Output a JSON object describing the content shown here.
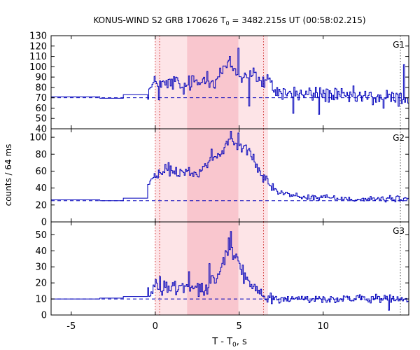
{
  "chart_data": {
    "type": "line",
    "title_prefix": "KONUS-WIND S2 GRB 170626 T",
    "title_sub": "0",
    "title_suffix": " = 3482.215s UT (00:58:02.215)",
    "xlabel_prefix": "T - T",
    "xlabel_sub": "0",
    "xlabel_suffix": ", s",
    "ylabel": "counts / 64 ms",
    "xlim": [
      -6.2,
      15.1
    ],
    "xticks": [
      -5,
      0,
      5,
      10
    ],
    "colors": {
      "data": "#0000bb",
      "baseline": "#0000bb",
      "shade_outer": "#fde4e7",
      "shade_inner": "#f9c6ce",
      "marker": "#d03030"
    },
    "shading": {
      "outer": [
        0,
        6.72
      ],
      "inner": [
        1.9,
        4.95
      ]
    },
    "markers": [
      0,
      0.26,
      6.45,
      14.6
    ],
    "panels": [
      {
        "name": "G1",
        "ylim": [
          40,
          130
        ],
        "yticks": [
          40,
          50,
          60,
          70,
          80,
          90,
          100,
          110,
          120,
          130
        ],
        "baseline": 70,
        "series": {
          "pre_steps": [
            [
              -6.2,
              71
            ],
            [
              -3.3,
              69.5
            ],
            [
              -1.9,
              73
            ]
          ],
          "points": [
            [
              -0.45,
              76
            ],
            [
              0,
              85
            ],
            [
              0.6,
              82
            ],
            [
              1.2,
              86
            ],
            [
              1.6,
              78
            ],
            [
              2.2,
              86
            ],
            [
              2.6,
              83
            ],
            [
              3.0,
              92
            ],
            [
              3.5,
              85
            ],
            [
              4.0,
              97
            ],
            [
              4.4,
              103
            ],
            [
              4.9,
              92
            ],
            [
              5.3,
              90
            ],
            [
              5.8,
              97
            ],
            [
              6.2,
              84
            ],
            [
              6.7,
              86
            ],
            [
              7.2,
              76
            ],
            [
              8.0,
              74
            ],
            [
              9.0,
              73
            ],
            [
              10.0,
              74
            ],
            [
              11.0,
              71
            ],
            [
              12.0,
              71
            ],
            [
              13.0,
              70
            ],
            [
              14.0,
              70
            ],
            [
              15.0,
              68
            ]
          ],
          "amp_pre": 0,
          "amp_burst": 9,
          "amp_post": 9,
          "spikes": [
            [
              0.2,
              68
            ],
            [
              4.95,
              118
            ],
            [
              5.55,
              62
            ],
            [
              8.2,
              55
            ],
            [
              9.7,
              54
            ],
            [
              13.55,
              60
            ],
            [
              14.8,
              102
            ]
          ]
        }
      },
      {
        "name": "G2",
        "ylim": [
          0,
          110
        ],
        "yticks": [
          0,
          20,
          40,
          60,
          80,
          100
        ],
        "baseline": 25,
        "series": {
          "pre_steps": [
            [
              -6.2,
              26
            ],
            [
              -3.3,
              25
            ],
            [
              -1.9,
              28
            ]
          ],
          "points": [
            [
              -0.45,
              45
            ],
            [
              0,
              53
            ],
            [
              0.6,
              62
            ],
            [
              1.2,
              57
            ],
            [
              1.6,
              60
            ],
            [
              2.2,
              56
            ],
            [
              2.6,
              60
            ],
            [
              3.0,
              67
            ],
            [
              3.5,
              75
            ],
            [
              4.0,
              82
            ],
            [
              4.4,
              99
            ],
            [
              4.9,
              88
            ],
            [
              5.3,
              90
            ],
            [
              5.8,
              72
            ],
            [
              6.2,
              60
            ],
            [
              6.7,
              50
            ],
            [
              7.2,
              36
            ],
            [
              8.0,
              32
            ],
            [
              9.0,
              29
            ],
            [
              10.0,
              29
            ],
            [
              11.0,
              28
            ],
            [
              12.0,
              27
            ],
            [
              13.0,
              27
            ],
            [
              14.0,
              27
            ],
            [
              15.0,
              27
            ]
          ],
          "amp_pre": 0,
          "amp_burst": 7,
          "amp_post": 4,
          "spikes": [
            [
              0.75,
              70
            ],
            [
              3.35,
              86
            ],
            [
              4.5,
              107
            ],
            [
              4.95,
              105
            ],
            [
              5.8,
              80
            ],
            [
              6.4,
              47
            ]
          ]
        }
      },
      {
        "name": "G3",
        "ylim": [
          0,
          58
        ],
        "yticks": [
          0,
          10,
          20,
          30,
          40,
          50
        ],
        "baseline": 10,
        "series": {
          "pre_steps": [
            [
              -6.2,
              10
            ],
            [
              -3.3,
              10.5
            ],
            [
              -1.9,
              11.5
            ]
          ],
          "points": [
            [
              -0.45,
              14
            ],
            [
              0,
              19
            ],
            [
              0.6,
              17
            ],
            [
              1.2,
              18
            ],
            [
              1.6,
              17
            ],
            [
              2.2,
              19
            ],
            [
              2.6,
              17
            ],
            [
              3.0,
              16
            ],
            [
              3.5,
              22
            ],
            [
              4.0,
              32
            ],
            [
              4.4,
              42
            ],
            [
              4.9,
              31
            ],
            [
              5.3,
              23
            ],
            [
              5.8,
              18
            ],
            [
              6.2,
              14
            ],
            [
              6.7,
              11
            ],
            [
              7.2,
              10
            ],
            [
              8.0,
              10
            ],
            [
              9.0,
              10
            ],
            [
              10.0,
              10
            ],
            [
              11.0,
              10
            ],
            [
              12.0,
              10
            ],
            [
              13.0,
              10
            ],
            [
              14.0,
              10
            ],
            [
              15.0,
              9
            ]
          ],
          "amp_pre": 0,
          "amp_burst": 5,
          "amp_post": 3,
          "spikes": [
            [
              0.25,
              24
            ],
            [
              2.0,
              27
            ],
            [
              3.2,
              32
            ],
            [
              4.35,
              48
            ],
            [
              4.5,
              52
            ],
            [
              4.8,
              38
            ],
            [
              13.9,
              3
            ]
          ]
        }
      }
    ]
  }
}
